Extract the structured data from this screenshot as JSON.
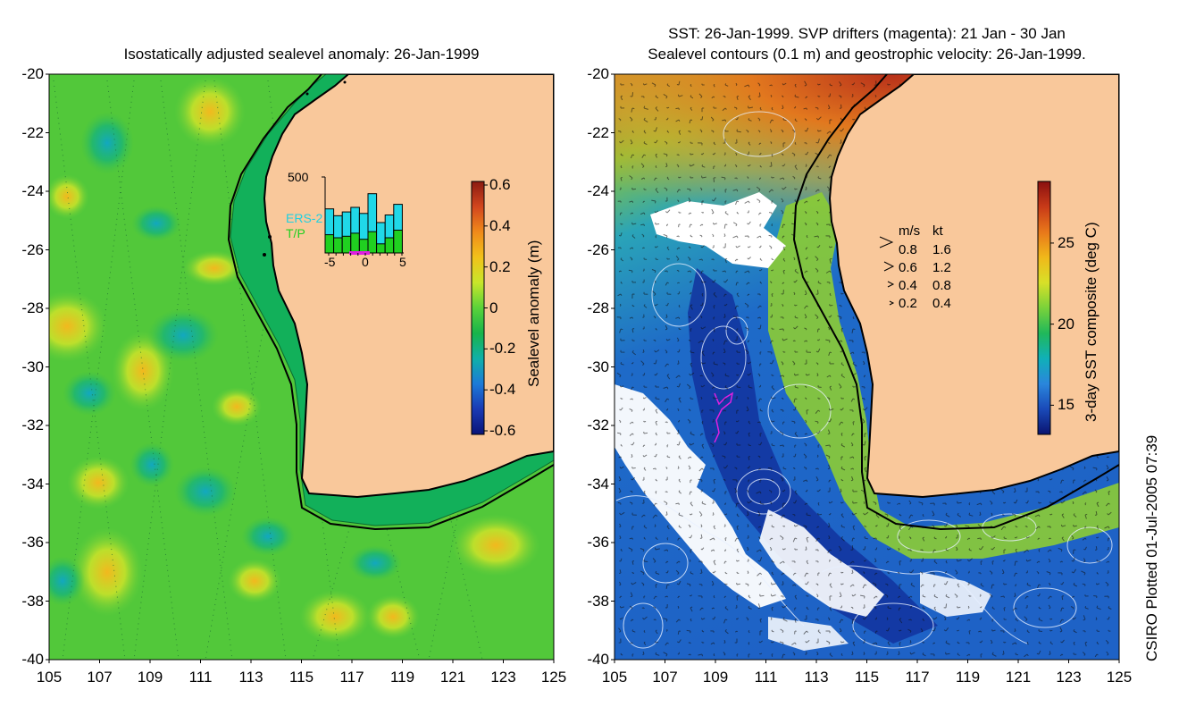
{
  "left_panel": {
    "title": "Isostatically adjusted sealevel anomaly: 26-Jan-1999",
    "y_ticks": [
      "-20",
      "-22",
      "-24",
      "-26",
      "-28",
      "-30",
      "-32",
      "-34",
      "-36",
      "-38",
      "-40"
    ],
    "x_ticks": [
      "105",
      "107",
      "109",
      "111",
      "113",
      "115",
      "117",
      "119",
      "121",
      "123",
      "125"
    ],
    "colorbar": {
      "label": "Sealevel anomaly (m)",
      "ticks": [
        "0.6",
        "0.4",
        "0.2",
        "0",
        "-0.2",
        "-0.4",
        "-0.6"
      ],
      "colors": [
        "#8b1a10",
        "#d2461e",
        "#f08a1a",
        "#f2c21a",
        "#c8e62a",
        "#5ad23a",
        "#18b44a",
        "#10b0a8",
        "#1c7ad8",
        "#1a3ab4",
        "#0a1478"
      ]
    },
    "inset": {
      "ymax_label": "500",
      "legend": [
        "ERS-2",
        "T/P"
      ],
      "x_ticks": [
        "-5",
        "0",
        "5"
      ],
      "ers2_counts": [
        290,
        245,
        270,
        300,
        260,
        390,
        200,
        250,
        320
      ],
      "tp_counts": [
        120,
        100,
        110,
        130,
        90,
        140,
        60,
        100,
        150
      ]
    }
  },
  "right_panel": {
    "title_line1": "SST: 26-Jan-1999. SVP drifters (magenta): 21 Jan - 30 Jan",
    "title_line2": "Sealevel contours (0.1 m) and geostrophic velocity: 26-Jan-1999.",
    "y_ticks": [
      "-20",
      "-22",
      "-24",
      "-26",
      "-28",
      "-30",
      "-32",
      "-34",
      "-36",
      "-38",
      "-40"
    ],
    "x_ticks": [
      "105",
      "107",
      "109",
      "111",
      "113",
      "115",
      "117",
      "119",
      "121",
      "123",
      "125"
    ],
    "colorbar": {
      "label": "3-day SST composite (deg C)",
      "ticks": [
        "25",
        "20",
        "15"
      ],
      "colors": [
        "#8a1010",
        "#c83a18",
        "#e8781a",
        "#f0b81a",
        "#d8e028",
        "#7ad23a",
        "#20b85a",
        "#10b0b8",
        "#2a86dc",
        "#1a4ab8",
        "#0a1470"
      ]
    },
    "velocity_legend": {
      "header_ms": "m/s",
      "header_kt": "kt",
      "rows": [
        {
          "ms": "0.8",
          "kt": "1.6"
        },
        {
          "ms": "0.6",
          "kt": "1.2"
        },
        {
          "ms": "0.4",
          "kt": "0.8"
        },
        {
          "ms": "0.2",
          "kt": "0.4"
        }
      ]
    }
  },
  "credit": "CSIRO Plotted 01-Jul-2005 07:39",
  "colors": {
    "land": "#f9c89b",
    "coast": "#000000",
    "sla_background": "#52c83a",
    "sla_high": "#e8c81e",
    "sla_low": "#16aeb0",
    "shelf": "#10b060",
    "sst_warm": "#c8501a",
    "sst_cool": "#1e5ac8",
    "drifter": "#e020e0",
    "contour": "#e8f0ff"
  }
}
